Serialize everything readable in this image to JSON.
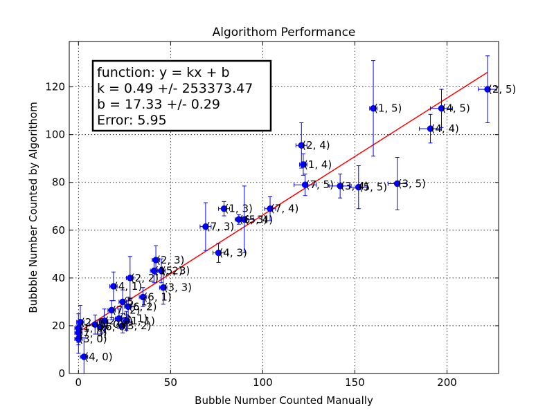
{
  "colors": {
    "marker": "#0000ff",
    "fit_line": "#ff0000",
    "errorbar": "#0000ff"
  },
  "chart_data": {
    "type": "scatter",
    "title": "Algorithom Performance",
    "xlabel": "Bubble Number Counted Manually",
    "ylabel": "Bubbble Number Counted by Algorithom",
    "xlim": [
      -5,
      228
    ],
    "ylim": [
      0,
      139
    ],
    "xticks": [
      0,
      50,
      100,
      150,
      200
    ],
    "yticks": [
      0,
      20,
      40,
      60,
      80,
      100,
      120
    ],
    "grid": true,
    "annotation": [
      "function:  y = kx + b",
      "k = 0.49 +/- 253373.47",
      "b = 17.33 +/- 0.29",
      "Error: 5.95"
    ],
    "fit": {
      "k": 0.49,
      "b": 17.33,
      "x_range": [
        0,
        222
      ]
    },
    "points": [
      {
        "label": "(2, 5)",
        "x": 222,
        "y": 119,
        "xerr": 5,
        "yerr": 14
      },
      {
        "label": "(1, 5)",
        "x": 160,
        "y": 111,
        "xerr": 2,
        "yerr": 20
      },
      {
        "label": "(4, 5)",
        "x": 197,
        "y": 111,
        "xerr": 6,
        "yerr": 8
      },
      {
        "label": "(4, 4)",
        "x": 191,
        "y": 102.5,
        "xerr": 6,
        "yerr": 6
      },
      {
        "label": "(2, 4)",
        "x": 121,
        "y": 95.5,
        "xerr": 3,
        "yerr": 9.5
      },
      {
        "label": "(1, 4)",
        "x": 122,
        "y": 87.5,
        "xerr": 2,
        "yerr": 4.5
      },
      {
        "label": "(7, 5)",
        "x": 123,
        "y": 79,
        "xerr": 6,
        "yerr": 4.5
      },
      {
        "label": "(3, 4)",
        "x": 142,
        "y": 78.5,
        "xerr": 6,
        "yerr": 5
      },
      {
        "label": "(5, 5)",
        "x": 152,
        "y": 78,
        "xerr": 5,
        "yerr": 9
      },
      {
        "label": "(3, 5)",
        "x": 173,
        "y": 79.5,
        "xerr": 5,
        "yerr": 11
      },
      {
        "label": "(7, 4)",
        "x": 104,
        "y": 69,
        "xerr": 3,
        "yerr": 5
      },
      {
        "label": "(1, 3)",
        "x": 79,
        "y": 69,
        "xerr": 3,
        "yerr": 3
      },
      {
        "label": "(6, 3)",
        "x": 87,
        "y": 64.5,
        "xerr": 2,
        "yerr": 2
      },
      {
        "label": "(5, 4)",
        "x": 90,
        "y": 64.5,
        "xerr": 5,
        "yerr": 14
      },
      {
        "label": "(7, 3)",
        "x": 69,
        "y": 61.5,
        "xerr": 3,
        "yerr": 10
      },
      {
        "label": "(4, 3)",
        "x": 76,
        "y": 50.5,
        "xerr": 3,
        "yerr": 4
      },
      {
        "label": "(2, 3)",
        "x": 42,
        "y": 47.5,
        "xerr": 2,
        "yerr": 6
      },
      {
        "label": "(1, 2)",
        "x": 41,
        "y": 43,
        "xerr": 2,
        "yerr": 5
      },
      {
        "label": "(5, 3)",
        "x": 45,
        "y": 43,
        "xerr": 2,
        "yerr": 5
      },
      {
        "label": "(2, 2)",
        "x": 28,
        "y": 40,
        "xerr": 2,
        "yerr": 9
      },
      {
        "label": "(3, 3)",
        "x": 46,
        "y": 36,
        "xerr": 2,
        "yerr": 7
      },
      {
        "label": "(4, 1)",
        "x": 19,
        "y": 36.5,
        "xerr": 2,
        "yerr": 6
      },
      {
        "label": "(6, 1)",
        "x": 35,
        "y": 32,
        "xerr": 2,
        "yerr": 4
      },
      {
        "label": "(5, 1)",
        "x": 24,
        "y": 30,
        "xerr": 2,
        "yerr": 5
      },
      {
        "label": "(6, 2)",
        "x": 27,
        "y": 28,
        "xerr": 2,
        "yerr": 4
      },
      {
        "label": "(7, 2)",
        "x": 18,
        "y": 26.5,
        "xerr": 2,
        "yerr": 4
      },
      {
        "label": "(3, 1)",
        "x": 22,
        "y": 23,
        "xerr": 2,
        "yerr": 4
      },
      {
        "label": "(1, 1)",
        "x": 26,
        "y": 22,
        "xerr": 2,
        "yerr": 4
      },
      {
        "label": "(3, 2)",
        "x": 24,
        "y": 20,
        "xerr": 2,
        "yerr": 3
      },
      {
        "label": "(2, 1)",
        "x": 14,
        "y": 22,
        "xerr": 2,
        "yerr": 5
      },
      {
        "label": "(2, 0)",
        "x": 1,
        "y": 21.5,
        "xerr": 2,
        "yerr": 7
      },
      {
        "label": "(5, 0)",
        "x": 9,
        "y": 20.5,
        "xerr": 3,
        "yerr": 4
      },
      {
        "label": "(6, 0)",
        "x": 12,
        "y": 19.5,
        "xerr": 3,
        "yerr": 3
      },
      {
        "label": "(1, 0)",
        "x": 0,
        "y": 19,
        "xerr": 2,
        "yerr": 6
      },
      {
        "label": "(7, 0)",
        "x": 0,
        "y": 17,
        "xerr": 2,
        "yerr": 5
      },
      {
        "label": "(3, 0)",
        "x": 0,
        "y": 14.5,
        "xerr": 2,
        "yerr": 6
      },
      {
        "label": "(4, 0)",
        "x": 3,
        "y": 7,
        "xerr": 2,
        "yerr": 8
      }
    ]
  }
}
